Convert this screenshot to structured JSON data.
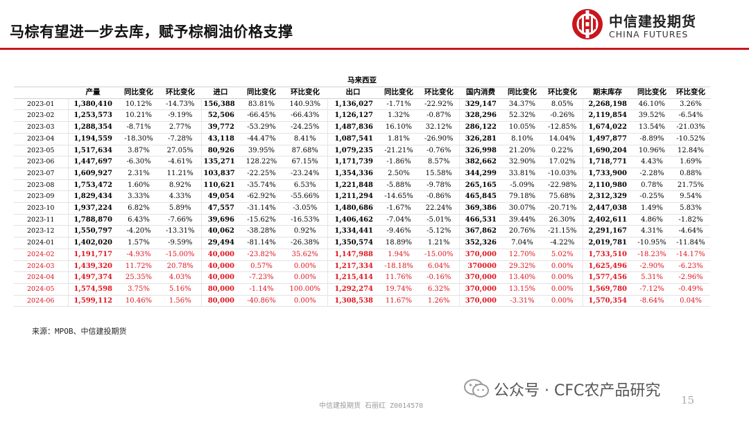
{
  "header": {
    "title": "马棕有望进一步去库，赋予棕榈油价格支撑",
    "logo_cn": "中信建投期货",
    "logo_en": "CHINA FUTURES",
    "accent_color": "#c8161d"
  },
  "table": {
    "caption": "马来西亚",
    "columns": [
      "",
      "产量",
      "同比变化",
      "环比变化",
      "进口",
      "同比变化",
      "环比变化",
      "出口",
      "同比变化",
      "环比变化",
      "国内消费",
      "同比变化",
      "环比变化",
      "期末库存",
      "同比变化",
      "环比变化"
    ],
    "forecast_color": "#e0141d",
    "rows": [
      {
        "c": [
          "2023-01",
          "1,380,410",
          "10.12%",
          "-14.73%",
          "156,388",
          "83.81%",
          "140.93%",
          "1,136,027",
          "-1.71%",
          "-22.92%",
          "329,147",
          "34.37%",
          "8.05%",
          "2,268,198",
          "46.10%",
          "3.26%"
        ],
        "f": false
      },
      {
        "c": [
          "2023-02",
          "1,253,573",
          "10.21%",
          "-9.19%",
          "52,506",
          "-66.45%",
          "-66.43%",
          "1,126,127",
          "1.32%",
          "-0.87%",
          "328,296",
          "52.32%",
          "-0.26%",
          "2,119,854",
          "39.52%",
          "-6.54%"
        ],
        "f": false
      },
      {
        "c": [
          "2023-03",
          "1,288,354",
          "-8.71%",
          "2.77%",
          "39,772",
          "-53.29%",
          "-24.25%",
          "1,487,836",
          "16.10%",
          "32.12%",
          "286,122",
          "10.05%",
          "-12.85%",
          "1,674,022",
          "13.54%",
          "-21.03%"
        ],
        "f": false
      },
      {
        "c": [
          "2023-04",
          "1,194,559",
          "-18.30%",
          "-7.28%",
          "43,118",
          "-44.47%",
          "8.41%",
          "1,087,541",
          "1.81%",
          "-26.90%",
          "326,281",
          "8.10%",
          "14.04%",
          "1,497,877",
          "-8.89%",
          "-10.52%"
        ],
        "f": false
      },
      {
        "c": [
          "2023-05",
          "1,517,634",
          "3.87%",
          "27.05%",
          "80,926",
          "39.95%",
          "87.68%",
          "1,079,235",
          "-21.21%",
          "-0.76%",
          "326,998",
          "21.20%",
          "0.22%",
          "1,690,204",
          "10.96%",
          "12.84%"
        ],
        "f": false
      },
      {
        "c": [
          "2023-06",
          "1,447,697",
          "-6.30%",
          "-4.61%",
          "135,271",
          "128.22%",
          "67.15%",
          "1,171,739",
          "-1.86%",
          "8.57%",
          "382,662",
          "32.90%",
          "17.02%",
          "1,718,771",
          "4.43%",
          "1.69%"
        ],
        "f": false
      },
      {
        "c": [
          "2023-07",
          "1,609,927",
          "2.31%",
          "11.21%",
          "103,837",
          "-22.25%",
          "-23.24%",
          "1,354,336",
          "2.50%",
          "15.58%",
          "344,299",
          "33.81%",
          "-10.03%",
          "1,733,900",
          "-2.28%",
          "0.88%"
        ],
        "f": false
      },
      {
        "c": [
          "2023-08",
          "1,753,472",
          "1.60%",
          "8.92%",
          "110,621",
          "-35.74%",
          "6.53%",
          "1,221,848",
          "-5.88%",
          "-9.78%",
          "265,165",
          "-5.09%",
          "-22.98%",
          "2,110,980",
          "0.78%",
          "21.75%"
        ],
        "f": false
      },
      {
        "c": [
          "2023-09",
          "1,829,434",
          "3.33%",
          "4.33%",
          "49,054",
          "-62.92%",
          "-55.66%",
          "1,211,294",
          "-14.65%",
          "-0.86%",
          "465,845",
          "79.18%",
          "75.68%",
          "2,312,329",
          "-0.25%",
          "9.54%"
        ],
        "f": false
      },
      {
        "c": [
          "2023-10",
          "1,937,224",
          "6.82%",
          "5.89%",
          "47,557",
          "-31.14%",
          "-3.05%",
          "1,480,686",
          "-1.67%",
          "22.24%",
          "369,386",
          "30.07%",
          "-20.71%",
          "2,447,038",
          "1.49%",
          "5.83%"
        ],
        "f": false
      },
      {
        "c": [
          "2023-11",
          "1,788,870",
          "6.43%",
          "-7.66%",
          "39,696",
          "-15.62%",
          "-16.53%",
          "1,406,462",
          "-7.04%",
          "-5.01%",
          "466,531",
          "39.44%",
          "26.30%",
          "2,402,611",
          "4.86%",
          "-1.82%"
        ],
        "f": false
      },
      {
        "c": [
          "2023-12",
          "1,550,797",
          "-4.20%",
          "-13.31%",
          "40,062",
          "-38.28%",
          "0.92%",
          "1,334,441",
          "-9.46%",
          "-5.12%",
          "367,862",
          "20.76%",
          "-21.15%",
          "2,291,167",
          "4.31%",
          "-4.64%"
        ],
        "f": false
      },
      {
        "c": [
          "2024-01",
          "1,402,020",
          "1.57%",
          "-9.59%",
          "29,494",
          "-81.14%",
          "-26.38%",
          "1,350,574",
          "18.89%",
          "1.21%",
          "352,326",
          "7.04%",
          "-4.22%",
          "2,019,781",
          "-10.95%",
          "-11.84%"
        ],
        "f": false
      },
      {
        "c": [
          "2024-02",
          "1,191,717",
          "-4.93%",
          "-15.00%",
          "40,000",
          "-23.82%",
          "35.62%",
          "1,147,988",
          "1.94%",
          "-15.00%",
          "370,000",
          "12.70%",
          "5.02%",
          "1,733,510",
          "-18.23%",
          "-14.17%"
        ],
        "f": true
      },
      {
        "c": [
          "2024-03",
          "1,439,320",
          "11.72%",
          "20.78%",
          "40,000",
          "0.57%",
          "0.00%",
          "1,217,334",
          "-18.18%",
          "6.04%",
          "370000",
          "29.32%",
          "0.00%",
          "1,625,496",
          "-2.90%",
          "-6.23%"
        ],
        "f": true
      },
      {
        "c": [
          "2024-04",
          "1,497,374",
          "25.35%",
          "4.03%",
          "40,000",
          "-7.23%",
          "0.00%",
          "1,215,414",
          "11.76%",
          "-0.16%",
          "370,000",
          "13.40%",
          "0.00%",
          "1,577,456",
          "5.31%",
          "-2.96%"
        ],
        "f": true
      },
      {
        "c": [
          "2024-05",
          "1,574,598",
          "3.75%",
          "5.16%",
          "80,000",
          "-1.14%",
          "100.00%",
          "1,292,274",
          "19.74%",
          "6.32%",
          "370,000",
          "13.15%",
          "0.00%",
          "1,569,780",
          "-7.12%",
          "-0.49%"
        ],
        "f": true
      },
      {
        "c": [
          "2024-06",
          "1,599,112",
          "10.46%",
          "1.56%",
          "80,000",
          "-40.86%",
          "0.00%",
          "1,308,538",
          "11.67%",
          "1.26%",
          "370,000",
          "-3.31%",
          "0.00%",
          "1,570,354",
          "-8.64%",
          "0.04%"
        ],
        "f": true
      }
    ]
  },
  "source": "来源：MPOB、中信建投期货",
  "footer": "中信建投期货 石丽红 Z0014570",
  "watermark": "公众号 · CFC农产品研究",
  "page_number": "15"
}
